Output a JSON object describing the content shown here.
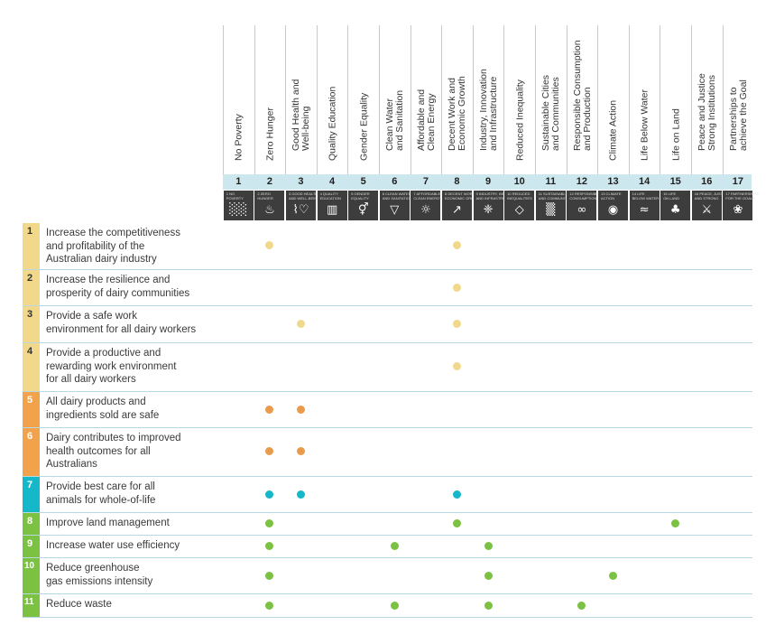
{
  "colors": {
    "yellow": "#f2d88a",
    "yellow_dot": "#f0d98c",
    "orange": "#f2a24a",
    "orange_dot": "#e99a4a",
    "teal": "#14b8c9",
    "green": "#7cc242",
    "band": "#cde7ef",
    "icon_bg": "#3d3d3d"
  },
  "goals": [
    {
      "num": "1",
      "label": "No Poverty",
      "icon": "family-people-icon",
      "glyph": "░░",
      "mini": "1 NO\nPOVERTY"
    },
    {
      "num": "2",
      "label": "Zero Hunger",
      "icon": "bowl-icon",
      "glyph": "♨",
      "mini": "2 ZERO\nHUNGER"
    },
    {
      "num": "3",
      "label": "Good Health and\nWell-being",
      "icon": "heartbeat-icon",
      "glyph": "⌇♡",
      "mini": "3 GOOD HEALTH\nAND WELL-BEING"
    },
    {
      "num": "4",
      "label": "Quality Education",
      "icon": "book-icon",
      "glyph": "▥",
      "mini": "4 QUALITY\nEDUCATION"
    },
    {
      "num": "5",
      "label": "Gender Equality",
      "icon": "gender-icon",
      "glyph": "⚥",
      "mini": "5 GENDER\nEQUALITY"
    },
    {
      "num": "6",
      "label": "Clean Water\nand Sanitation",
      "icon": "water-glass-icon",
      "glyph": "▽",
      "mini": "6 CLEAN WATER\nAND SANITATION"
    },
    {
      "num": "7",
      "label": "Affordable and\nClean Energy",
      "icon": "sun-icon",
      "glyph": "☼",
      "mini": "7 AFFORDABLE AND\nCLEAN ENERGY"
    },
    {
      "num": "8",
      "label": "Decent Work and\nEconomic Growth",
      "icon": "growth-chart-icon",
      "glyph": "↗",
      "mini": "8 DECENT WORK AND\nECONOMIC GROWTH"
    },
    {
      "num": "9",
      "label": "Industry, Innovation\nand Infrastructure",
      "icon": "cubes-icon",
      "glyph": "❈",
      "mini": "9 INDUSTRY, INNOVATION\nAND INFRASTRUCTURE"
    },
    {
      "num": "10",
      "label": "Reduced Inequality",
      "icon": "equality-icon",
      "glyph": "◇",
      "mini": "10 REDUCED\nINEQUALITIES"
    },
    {
      "num": "11",
      "label": "Sustainable Cities\nand Communities",
      "icon": "city-icon",
      "glyph": "▒",
      "mini": "11 SUSTAINABLE CITIES\nAND COMMUNITIES"
    },
    {
      "num": "12",
      "label": "Responsible Consumption\nand Production",
      "icon": "infinity-icon",
      "glyph": "∞",
      "mini": "12 RESPONSIBLE\nCONSUMPTION"
    },
    {
      "num": "13",
      "label": "Climate Action",
      "icon": "eye-globe-icon",
      "glyph": "◉",
      "mini": "13 CLIMATE\nACTION"
    },
    {
      "num": "14",
      "label": "Life Below Water",
      "icon": "fish-icon",
      "glyph": "≈",
      "mini": "14 LIFE\nBELOW WATER"
    },
    {
      "num": "15",
      "label": "Life on Land",
      "icon": "tree-icon",
      "glyph": "♣",
      "mini": "15 LIFE\nON LAND"
    },
    {
      "num": "16",
      "label": "Peace and Justice\nStrong Institutions",
      "icon": "dove-icon",
      "glyph": "⚔",
      "mini": "16 PEACE, JUSTICE\nAND STRONG"
    },
    {
      "num": "17",
      "label": "Partnerships to\nachieve the Goal",
      "icon": "rings-icon",
      "glyph": "❀",
      "mini": "17 PARTNERSHIPS\nFOR THE GOALS"
    }
  ],
  "rows": [
    {
      "num": "1",
      "text": "Increase the competitiveness\nand profitability of the\nAustralian dairy industry",
      "color": "yellow",
      "dots": [
        2,
        8
      ]
    },
    {
      "num": "2",
      "text": "Increase the resilience and\nprosperity of dairy communities",
      "color": "yellow",
      "dots": [
        8
      ]
    },
    {
      "num": "3",
      "text": "Provide a safe work\nenvironment for all dairy workers",
      "color": "yellow",
      "dots": [
        3,
        8
      ]
    },
    {
      "num": "4",
      "text": "Provide a productive and\nrewarding work environment\nfor all dairy workers",
      "color": "yellow",
      "dots": [
        8
      ]
    },
    {
      "num": "5",
      "text": "All dairy products and\ningredients sold are safe",
      "color": "orange",
      "dots": [
        2,
        3
      ]
    },
    {
      "num": "6",
      "text": "Dairy contributes to improved\nhealth outcomes for all\nAustralians",
      "color": "orange",
      "dots": [
        2,
        3
      ]
    },
    {
      "num": "7",
      "text": "Provide best care for all\nanimals for whole-of-life",
      "color": "teal",
      "dots": [
        2,
        3,
        8
      ]
    },
    {
      "num": "8",
      "text": "Improve land management",
      "color": "green",
      "dots": [
        2,
        8,
        15
      ]
    },
    {
      "num": "9",
      "text": "Increase water use efficiency",
      "color": "green",
      "dots": [
        2,
        6,
        9
      ]
    },
    {
      "num": "10",
      "text": "Reduce greenhouse\ngas emissions intensity",
      "color": "green",
      "dots": [
        2,
        9,
        13
      ]
    },
    {
      "num": "11",
      "text": "Reduce waste",
      "color": "green",
      "dots": [
        2,
        6,
        9,
        12
      ]
    }
  ]
}
